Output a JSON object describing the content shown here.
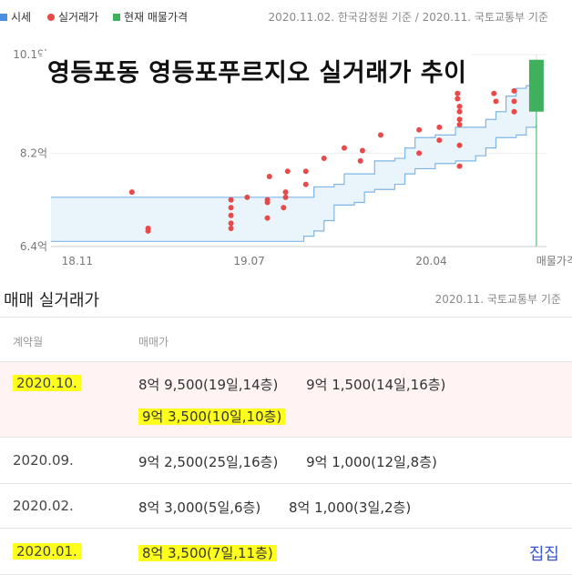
{
  "legend": {
    "items": [
      {
        "label": "시세",
        "color": "#4a90e2",
        "shape": "square"
      },
      {
        "label": "실거래가",
        "color": "#e84a4a",
        "shape": "circle"
      },
      {
        "label": "현재 매물가격",
        "color": "#3fb15c",
        "shape": "square"
      }
    ],
    "source": "2020.11.02. 한국감정원 기준 / 2020.11. 국토교통부 기준"
  },
  "overlay_title": "영등포동 영등포푸르지오 실거래가 추이",
  "chart_data": {
    "type": "scatter",
    "x_ticks": [
      "18.11",
      "19.07",
      "20.04"
    ],
    "x_extra_label": "매물가격",
    "y_ticks": [
      "10.1억",
      "8.2억",
      "6.4억"
    ],
    "ylim": [
      6.4,
      10.1
    ],
    "xlim": [
      0,
      24.5
    ],
    "market_band": {
      "upper": [
        [
          0,
          7.35
        ],
        [
          9,
          7.35
        ],
        [
          12,
          7.35
        ],
        [
          13,
          7.55
        ],
        [
          14,
          7.6
        ],
        [
          14.5,
          7.8
        ],
        [
          15,
          7.8
        ],
        [
          16,
          8.05
        ],
        [
          17,
          8.1
        ],
        [
          17.5,
          8.3
        ],
        [
          18,
          8.5
        ],
        [
          19,
          8.55
        ],
        [
          19.5,
          8.55
        ],
        [
          20,
          8.7
        ],
        [
          21,
          8.7
        ],
        [
          21.5,
          8.85
        ],
        [
          22,
          9.0
        ],
        [
          22.5,
          9.3
        ],
        [
          23,
          9.45
        ],
        [
          23.5,
          9.5
        ],
        [
          24,
          9.8
        ]
      ],
      "lower": [
        [
          0,
          6.5
        ],
        [
          9,
          6.5
        ],
        [
          12,
          6.5
        ],
        [
          12.5,
          6.6
        ],
        [
          13,
          6.7
        ],
        [
          13.5,
          6.9
        ],
        [
          14,
          7.2
        ],
        [
          15,
          7.25
        ],
        [
          15.5,
          7.45
        ],
        [
          16,
          7.5
        ],
        [
          17,
          7.6
        ],
        [
          17.5,
          7.8
        ],
        [
          18,
          7.9
        ],
        [
          19,
          8.0
        ],
        [
          20,
          8.05
        ],
        [
          21,
          8.15
        ],
        [
          21.5,
          8.3
        ],
        [
          22,
          8.5
        ],
        [
          23,
          8.55
        ],
        [
          23.5,
          8.7
        ],
        [
          24,
          8.75
        ]
      ]
    },
    "transactions": [
      [
        4,
        7.45
      ],
      [
        4.8,
        6.75
      ],
      [
        4.8,
        6.7
      ],
      [
        8.9,
        7.3
      ],
      [
        8.9,
        7.15
      ],
      [
        8.9,
        7.0
      ],
      [
        8.9,
        6.85
      ],
      [
        8.9,
        6.75
      ],
      [
        9.7,
        7.35
      ],
      [
        10.7,
        7.3
      ],
      [
        10.7,
        7.25
      ],
      [
        10.7,
        6.95
      ],
      [
        10.8,
        7.75
      ],
      [
        11.5,
        7.15
      ],
      [
        11.7,
        7.85
      ],
      [
        11.6,
        7.35
      ],
      [
        11.6,
        7.45
      ],
      [
        12.6,
        7.85
      ],
      [
        12.6,
        7.6
      ],
      [
        13.5,
        8.1
      ],
      [
        14.5,
        8.3
      ],
      [
        15.4,
        8.25
      ],
      [
        15.3,
        8.05
      ],
      [
        16.3,
        8.55
      ],
      [
        18.2,
        8.65
      ],
      [
        18.2,
        8.2
      ],
      [
        19.2,
        8.45
      ],
      [
        19.2,
        8.7
      ],
      [
        20.2,
        8.75
      ],
      [
        20.2,
        9.0
      ],
      [
        20.2,
        9.1
      ],
      [
        20.2,
        8.35
      ],
      [
        20.2,
        7.95
      ],
      [
        20.1,
        9.35
      ],
      [
        20.1,
        9.25
      ],
      [
        20.2,
        8.85
      ],
      [
        21.9,
        9.35
      ],
      [
        22.0,
        9.2
      ],
      [
        22.9,
        9.4
      ],
      [
        22.9,
        9.0
      ],
      [
        22.9,
        9.2
      ]
    ],
    "current_listing": {
      "low": 9.0,
      "high": 10.0
    },
    "colors": {
      "band_fill": "#eaf4fb",
      "band_line": "#7eb6e6",
      "point": "#e84a4a",
      "listing": "#3fb15c",
      "grid": "#eeeeee"
    }
  },
  "section": {
    "title": "매매 실거래가",
    "source": "2020.11. 국토교통부 기준"
  },
  "table": {
    "headers": [
      "계약월",
      "매매가"
    ],
    "rows": [
      {
        "month": "2020.10.",
        "deals": [
          "8억 9,500(19일,14층)",
          "9억 1,500(14일,16층)",
          "9억 3,500(10일,10층)"
        ]
      },
      {
        "month": "2020.09.",
        "deals": [
          "9억 2,500(25일,16층)",
          "9억 1,000(12일,8층)"
        ]
      },
      {
        "month": "2020.02.",
        "deals": [
          "8억 3,000(5일,6층)",
          "8억 1,000(3일,2층)"
        ]
      },
      {
        "month": "2020.01.",
        "deals": [
          "8억 3,500(7일,11층)"
        ]
      }
    ],
    "addon": "집집"
  }
}
